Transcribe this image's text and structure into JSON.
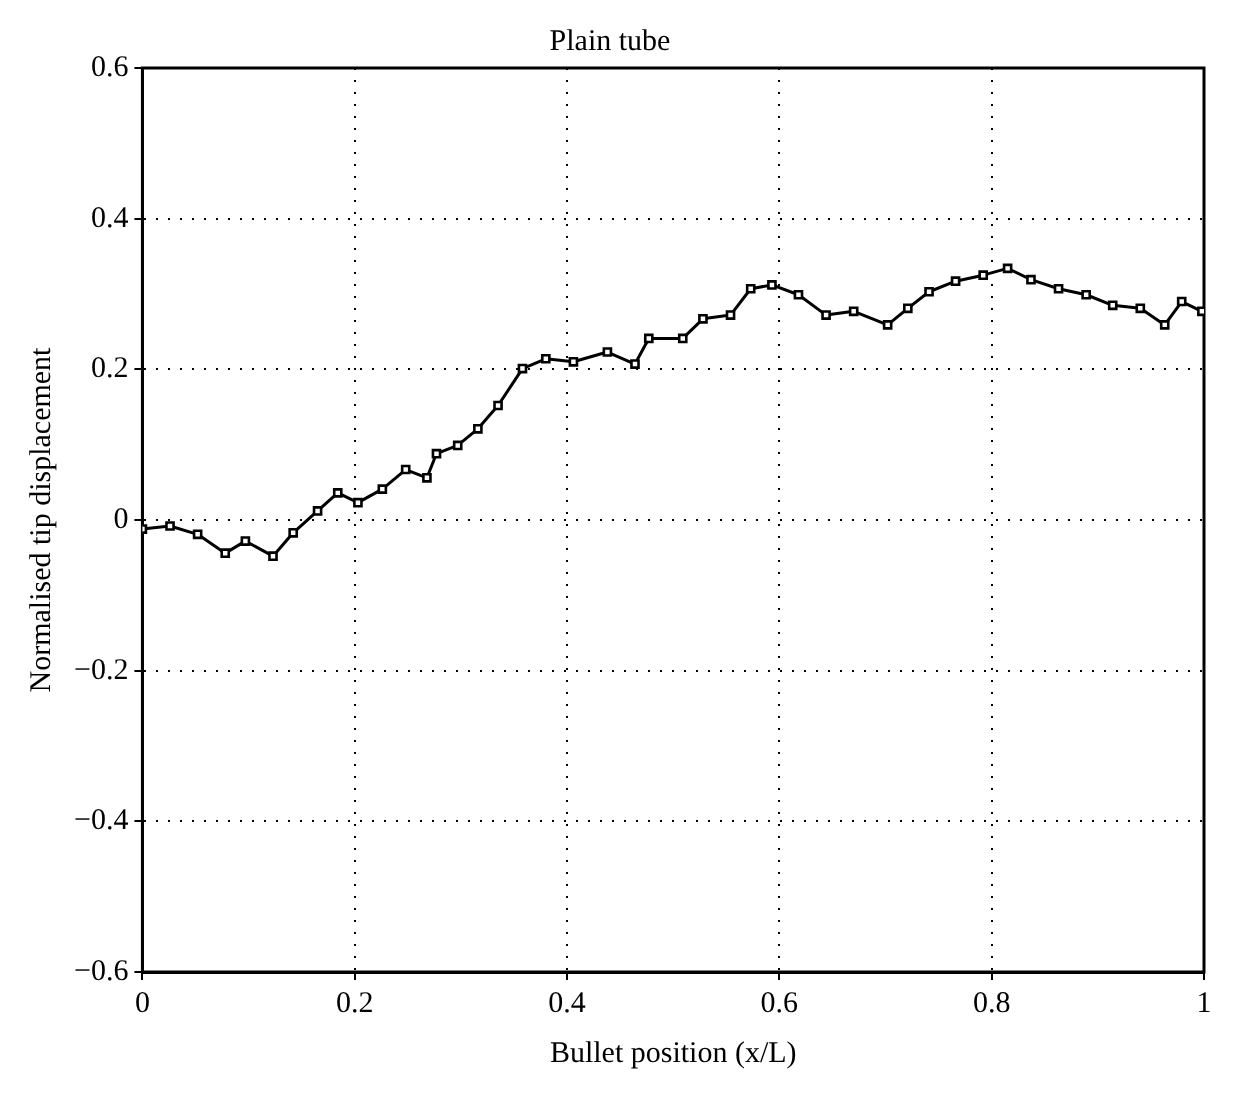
{
  "chart_data": {
    "type": "line",
    "title": "Plain tube",
    "xlabel": "Bullet position (x/L)",
    "ylabel": "Normalised tip displacement",
    "x": [
      0,
      0.026,
      0.052,
      0.078,
      0.097,
      0.123,
      0.142,
      0.165,
      0.184,
      0.203,
      0.226,
      0.248,
      0.268,
      0.277,
      0.297,
      0.316,
      0.335,
      0.358,
      0.38,
      0.406,
      0.438,
      0.464,
      0.477,
      0.509,
      0.528,
      0.554,
      0.573,
      0.593,
      0.618,
      0.644,
      0.67,
      0.702,
      0.721,
      0.741,
      0.766,
      0.792,
      0.815,
      0.837,
      0.863,
      0.889,
      0.914,
      0.94,
      0.963,
      0.979,
      0.998
    ],
    "series": [
      {
        "color": "#000000",
        "values": [
          -0.012,
          -0.008,
          -0.019,
          -0.044,
          -0.028,
          -0.048,
          -0.017,
          0.012,
          0.036,
          0.023,
          0.041,
          0.067,
          0.056,
          0.088,
          0.099,
          0.121,
          0.152,
          0.201,
          0.214,
          0.21,
          0.223,
          0.207,
          0.241,
          0.241,
          0.267,
          0.272,
          0.307,
          0.312,
          0.299,
          0.272,
          0.277,
          0.259,
          0.281,
          0.303,
          0.317,
          0.325,
          0.334,
          0.319,
          0.307,
          0.299,
          0.285,
          0.281,
          0.259,
          0.29,
          0.277
        ]
      }
    ],
    "xlim": [
      0,
      1
    ],
    "xticks": [
      0,
      0.2,
      0.4,
      0.6,
      0.8,
      1
    ],
    "ylim": [
      -0.6,
      0.6
    ],
    "yticks": [
      {
        "value": -0.6,
        "label": "−0.6"
      },
      {
        "value": -0.4,
        "label": "−0.4"
      },
      {
        "value": -0.2,
        "label": "−0.2"
      },
      0,
      0.2,
      0.4,
      0.6
    ],
    "grid": true,
    "marker": "square",
    "line_style": "solid",
    "legend": false
  }
}
